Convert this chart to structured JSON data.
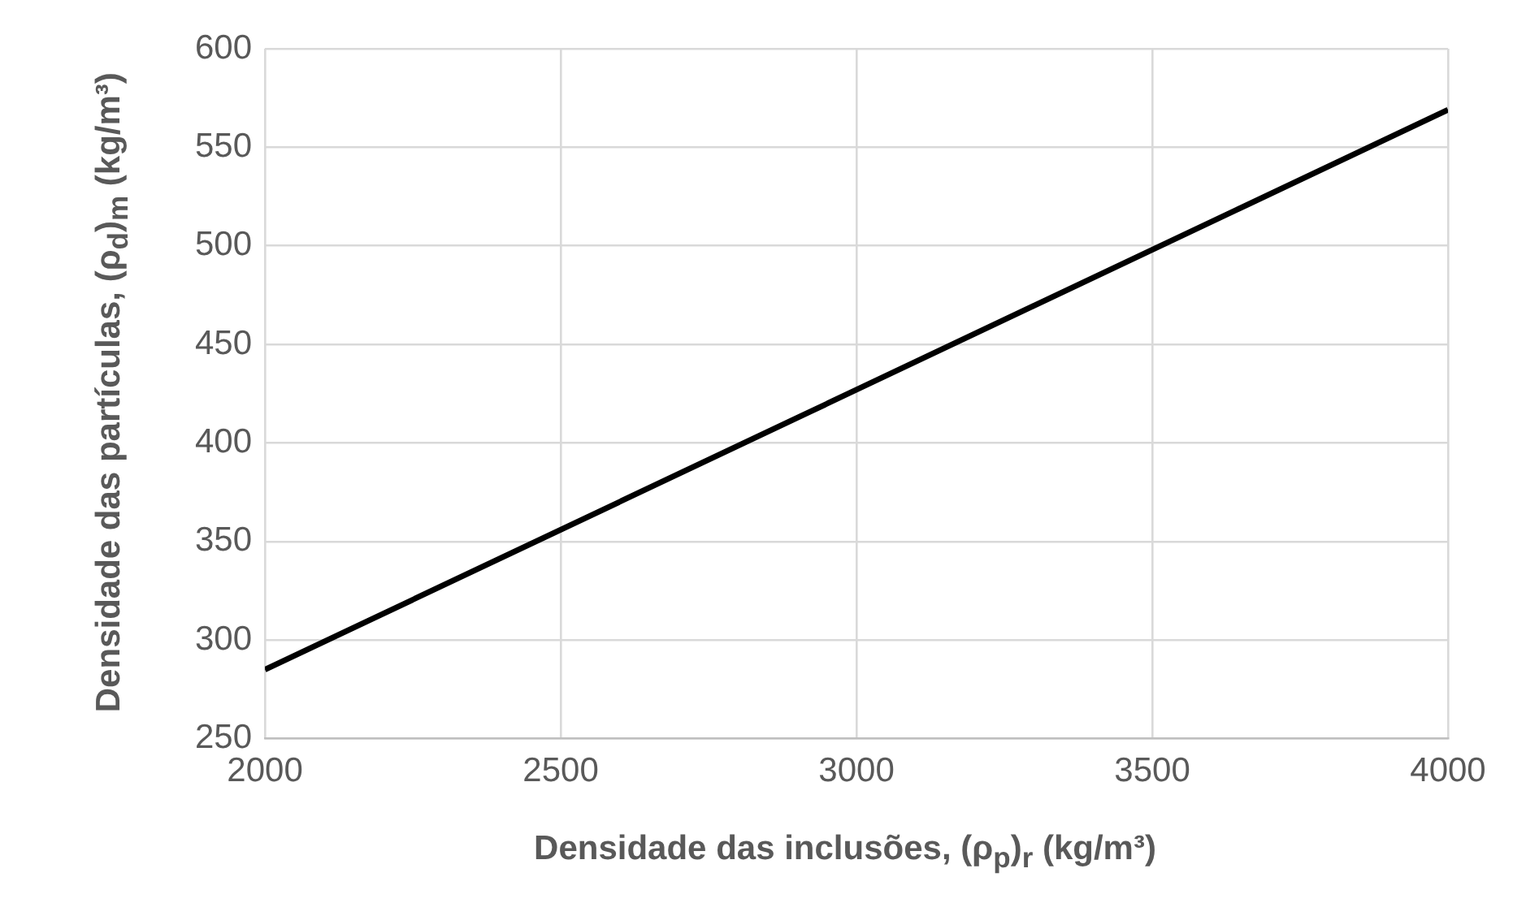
{
  "chart_data": {
    "type": "line",
    "xlabel": "Densidade das inclusões, (ρ$_{p}$)$_{r}$ (kg/m³)",
    "ylabel": "Densidade das partículas, (ρ$_{d}$)$_{m}$ (kg/m³)",
    "x": [
      2000,
      3000,
      4000
    ],
    "series": [
      {
        "color": "#000000",
        "values": [
          285,
          427,
          569
        ]
      }
    ],
    "xlim": [
      2000,
      4000
    ],
    "xticks": [
      2000,
      2500,
      3000,
      3500,
      4000
    ],
    "ylim": [
      250,
      600
    ],
    "yticks": [
      250,
      300,
      350,
      400,
      450,
      500,
      550,
      600
    ],
    "grid": true,
    "marker": "none",
    "line_style": "solid",
    "legend": false
  }
}
